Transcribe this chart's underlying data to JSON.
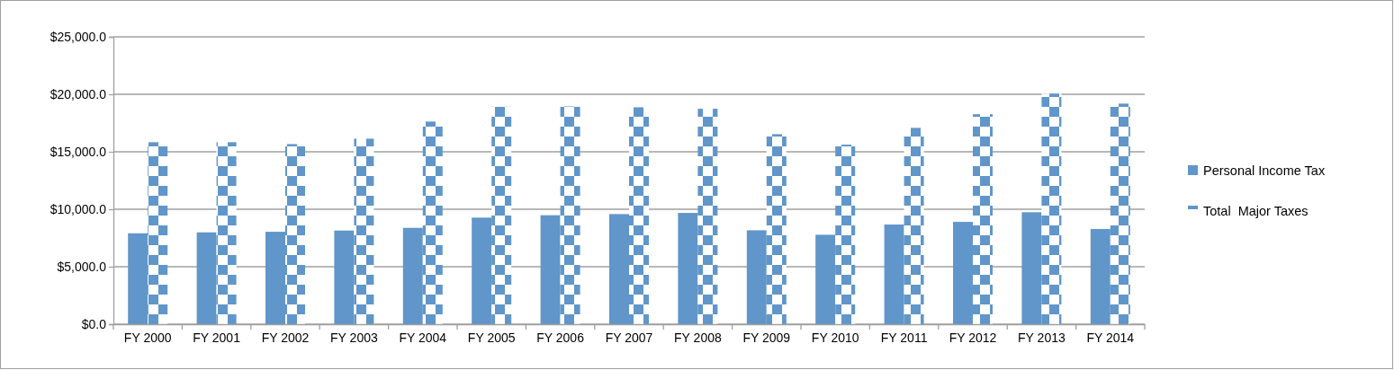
{
  "chart_data": {
    "type": "bar",
    "categories": [
      "FY 2000",
      "FY 2001",
      "FY 2002",
      "FY 2003",
      "FY 2004",
      "FY 2005",
      "FY 2006",
      "FY 2007",
      "FY 2008",
      "FY 2009",
      "FY 2010",
      "FY 2011",
      "FY 2012",
      "FY 2013",
      "FY 2014"
    ],
    "series": [
      {
        "name": "Personal Income Tax",
        "color": "#6096c9",
        "values": [
          7910,
          7990,
          8040,
          8150,
          8380,
          9270,
          9480,
          9580,
          9680,
          8170,
          7780,
          8670,
          8900,
          9740,
          8280
        ]
      },
      {
        "name": "Total  Major Taxes",
        "color": "#6096c9",
        "values": [
          15830,
          15830,
          15670,
          16140,
          17630,
          18920,
          18950,
          18870,
          18740,
          16530,
          15620,
          17080,
          18270,
          20050,
          19190
        ]
      }
    ],
    "ylim": [
      0,
      25000
    ],
    "yticks": [
      {
        "value": 0,
        "label": "$0.0"
      },
      {
        "value": 5000,
        "label": "$5,000.0"
      },
      {
        "value": 10000,
        "label": "$10,000.0"
      },
      {
        "value": 15000,
        "label": "$15,000.0"
      },
      {
        "value": 20000,
        "label": "$20,000.0"
      },
      {
        "value": 25000,
        "label": "$25,000.0"
      }
    ],
    "grid": "y",
    "legend": "right"
  }
}
